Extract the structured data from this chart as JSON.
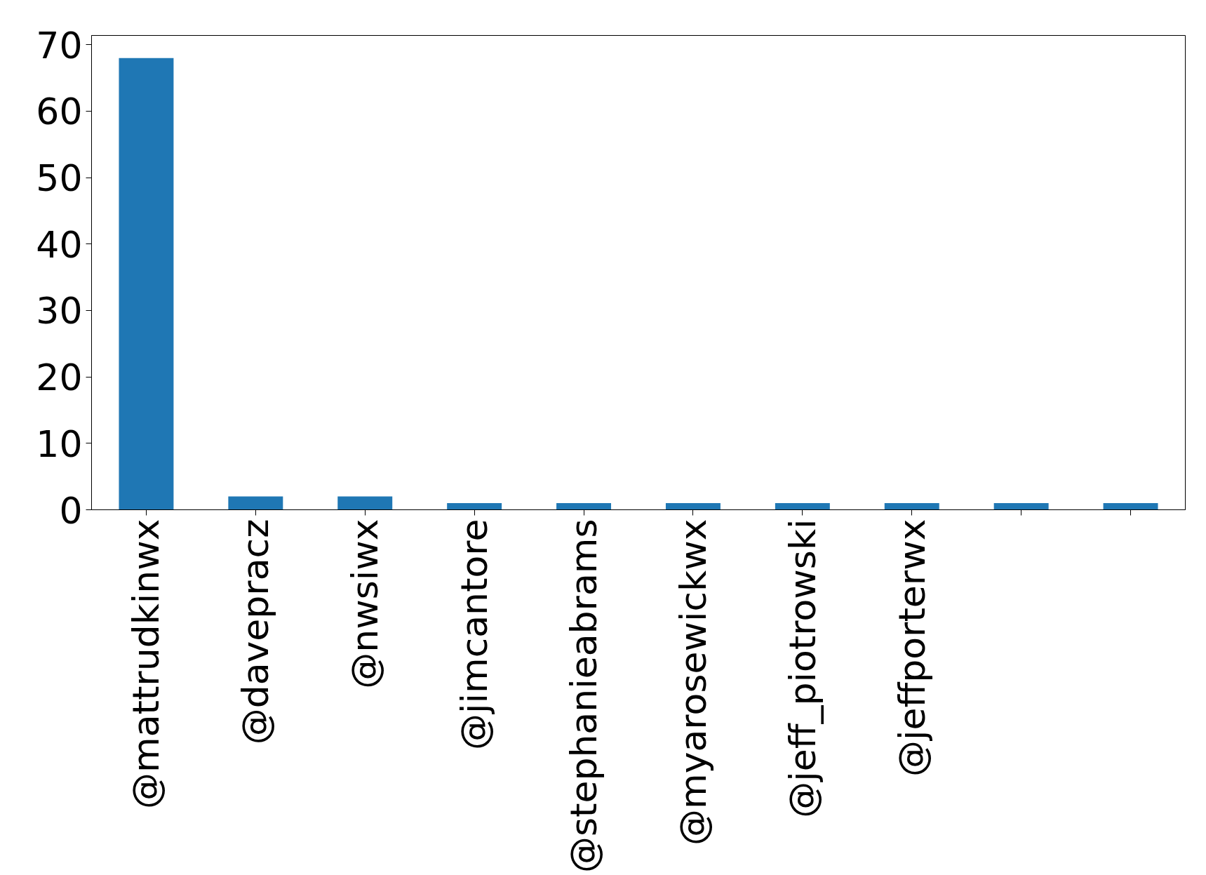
{
  "chart_data": {
    "type": "bar",
    "categories": [
      "@mattrudkinwx",
      "@davepracz",
      "@nwsiwx",
      "@jimcantore",
      "@stephanieabrams",
      "@myarosewickwx",
      "@jeff_piotrowski",
      "@jeffporterwx",
      null,
      null
    ],
    "values": [
      68,
      2,
      2,
      1,
      1,
      1,
      1,
      1,
      1,
      1
    ],
    "color": "#1f77b4",
    "ylim": [
      0,
      71.4
    ],
    "yticks": [
      0,
      10,
      20,
      30,
      40,
      50,
      60,
      70
    ],
    "grid": false
  }
}
